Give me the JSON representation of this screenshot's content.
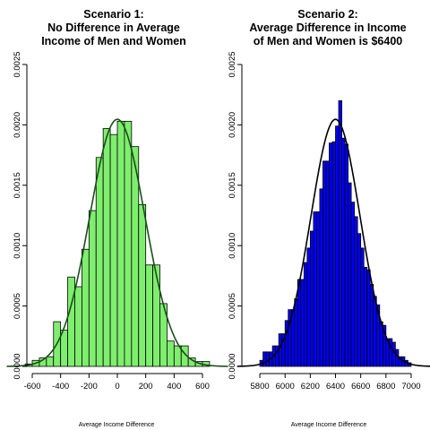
{
  "chart_data": [
    {
      "type": "bar",
      "title": [
        "Scenario 1:",
        "No Difference in  Average",
        "Income of Men and Women"
      ],
      "xlabel": "Average Income Difference",
      "ylabel": "",
      "colors": {
        "bar": "#7fee6e",
        "curve": "#1a4d1a",
        "outline": "#000000"
      },
      "xlim": [
        -600,
        600
      ],
      "ylim": [
        0,
        0.0025
      ],
      "x_ticks": [
        -600,
        -400,
        -200,
        0,
        200,
        400,
        600
      ],
      "y_ticks": [
        0.0,
        0.0005,
        0.001,
        0.0015,
        0.002,
        0.0025
      ],
      "y_tick_labels": [
        "0.0000",
        "0.0005",
        "0.0010",
        "0.0015",
        "0.0020",
        "0.0025"
      ],
      "bin_width": 50,
      "bins_start": [
        -650,
        -600,
        -550,
        -500,
        -450,
        -400,
        -350,
        -300,
        -250,
        -200,
        -150,
        -100,
        -50,
        0,
        50,
        100,
        150,
        200,
        250,
        300,
        350,
        400,
        450,
        500,
        550,
        600
      ],
      "values": [
        2e-05,
        5e-05,
        7e-05,
        8e-05,
        0.00037,
        0.0003,
        0.00074,
        0.00066,
        0.00097,
        0.00129,
        0.00173,
        0.00197,
        0.00192,
        0.00203,
        0.00203,
        0.00182,
        0.00134,
        0.00084,
        0.00084,
        0.00052,
        0.00021,
        0.00017,
        0.00017,
        7e-05,
        4e-05,
        4e-05
      ],
      "curve": {
        "mean": 0,
        "sd": 195
      }
    },
    {
      "type": "bar",
      "title": [
        "Scenario 2:",
        "Average Difference  in Income",
        "of Men and Women is $6400"
      ],
      "xlabel": "Average Income Difference",
      "ylabel": "",
      "colors": {
        "bar": "#0000ff",
        "curve": "#000000",
        "outline": "#000000"
      },
      "xlim": [
        5700,
        7050
      ],
      "ylim": [
        0,
        0.0025
      ],
      "x_ticks": [
        5800,
        6000,
        6200,
        6400,
        6600,
        6800,
        7000
      ],
      "y_ticks": [
        0.0,
        0.0005,
        0.001,
        0.0015,
        0.002,
        0.0025
      ],
      "y_tick_labels": [
        "0.0000",
        "0.0005",
        "0.0010",
        "0.0015",
        "0.0020",
        "0.0025"
      ],
      "bin_width": 25,
      "bins_start": [
        5800,
        5825,
        5850,
        5875,
        5900,
        5925,
        5950,
        5975,
        6000,
        6025,
        6050,
        6075,
        6100,
        6125,
        6150,
        6175,
        6200,
        6225,
        6250,
        6275,
        6300,
        6325,
        6350,
        6375,
        6400,
        6425,
        6450,
        6475,
        6500,
        6525,
        6550,
        6575,
        6600,
        6625,
        6650,
        6675,
        6700,
        6725,
        6750,
        6775,
        6800,
        6825,
        6850,
        6875,
        6900,
        6925,
        6950,
        6975
      ],
      "values": [
        5e-05,
        0.00012,
        0.00012,
        0.00012,
        0.00017,
        0.00017,
        0.00027,
        0.00027,
        0.00038,
        0.00047,
        0.00047,
        0.00056,
        0.00072,
        0.00072,
        0.00086,
        0.00098,
        0.00112,
        0.00128,
        0.00128,
        0.00147,
        0.0017,
        0.0017,
        0.00185,
        0.00186,
        0.00199,
        0.0022,
        0.00189,
        0.00184,
        0.00152,
        0.00136,
        0.00124,
        0.0011,
        0.00098,
        0.00082,
        0.0008,
        0.00068,
        0.00058,
        0.00051,
        0.00037,
        0.00034,
        0.00023,
        0.00023,
        0.0002,
        0.00014,
        8e-05,
        8e-05,
        5e-05,
        3e-05
      ],
      "curve": {
        "mean": 6400,
        "sd": 195
      }
    }
  ]
}
